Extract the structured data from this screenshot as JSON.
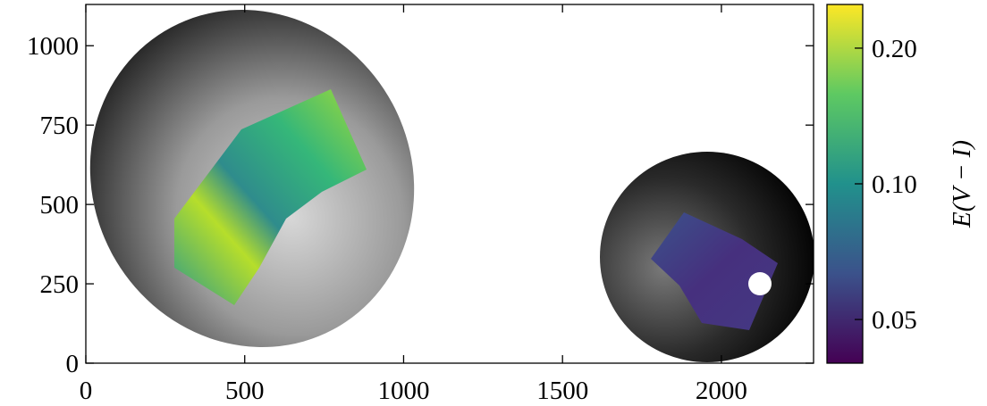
{
  "chart_data": {
    "type": "image",
    "xlim": [
      0,
      2290
    ],
    "xticks": [
      0,
      500,
      1000,
      1500,
      2000
    ],
    "ylim": [
      0,
      1130
    ],
    "yticks": [
      0,
      250,
      500,
      750,
      1000
    ],
    "colorbar": {
      "label": "E(V − I)",
      "scale": "log",
      "lim": [
        0.04,
        0.25
      ],
      "ticks": [
        0.05,
        {
          "value": 0.1,
          "label": "0.10"
        },
        {
          "value": 0.2,
          "label": "0.20"
        }
      ]
    }
  }
}
